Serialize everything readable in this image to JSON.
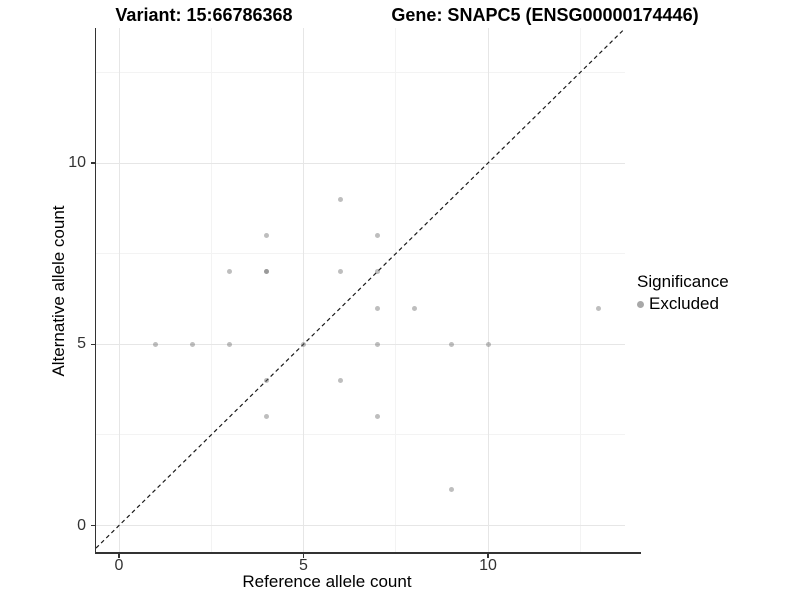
{
  "titles": {
    "variant": "Variant: 15:66786368",
    "gene": "Gene: SNAPC5 (ENSG00000174446)"
  },
  "axes": {
    "x": {
      "label": "Reference allele count",
      "tick_values": [
        0,
        5,
        10
      ],
      "tick_labels": [
        "0",
        "5",
        "10"
      ],
      "minor_ticks": [
        2.5,
        7.5,
        12.5
      ],
      "range": [
        -0.62,
        13.71
      ]
    },
    "y": {
      "label": "Alternative allele count",
      "tick_values": [
        0,
        5,
        10
      ],
      "tick_labels": [
        "0",
        "5",
        "10"
      ],
      "minor_ticks": [
        2.5,
        7.5,
        12.5
      ],
      "range": [
        -0.76,
        13.72
      ]
    }
  },
  "legend": {
    "title": "Significance",
    "items": [
      {
        "label": "Excluded",
        "color": "#a8a8a8"
      }
    ]
  },
  "colors": {
    "point": "rgba(110,110,110,0.45)",
    "grid_major": "#e6e6e6",
    "grid_minor": "#f3f3f3",
    "axis_line": "#333333",
    "reference_line": "#1a1a1a"
  },
  "chart_data": {
    "type": "scatter",
    "title_left": "Variant: 15:66786368",
    "title_right": "Gene: SNAPC5 (ENSG00000174446)",
    "xlabel": "Reference allele count",
    "ylabel": "Alternative allele count",
    "xlim": [
      -0.62,
      13.71
    ],
    "ylim": [
      -0.76,
      13.72
    ],
    "grid": "major and minor, light gray on white",
    "legend_position": "right",
    "series": [
      {
        "name": "Excluded",
        "marker": "filled circle, semi-transparent gray",
        "points": [
          [
            1,
            5
          ],
          [
            2,
            5
          ],
          [
            3,
            5
          ],
          [
            3,
            7
          ],
          [
            4,
            3
          ],
          [
            4,
            4
          ],
          [
            4,
            7
          ],
          [
            4,
            7
          ],
          [
            4,
            8
          ],
          [
            5,
            5
          ],
          [
            6,
            4
          ],
          [
            6,
            7
          ],
          [
            6,
            9
          ],
          [
            7,
            3
          ],
          [
            7,
            5
          ],
          [
            7,
            6
          ],
          [
            7,
            7
          ],
          [
            7,
            8
          ],
          [
            8,
            6
          ],
          [
            9,
            1
          ],
          [
            9,
            5
          ],
          [
            10,
            5
          ],
          [
            13,
            6
          ]
        ],
        "note_overplotted": "point (4,7) drawn twice (appears darker)"
      }
    ],
    "reference_line": {
      "type": "identity",
      "equation": "y = x",
      "style": "dashed",
      "color": "black"
    }
  }
}
